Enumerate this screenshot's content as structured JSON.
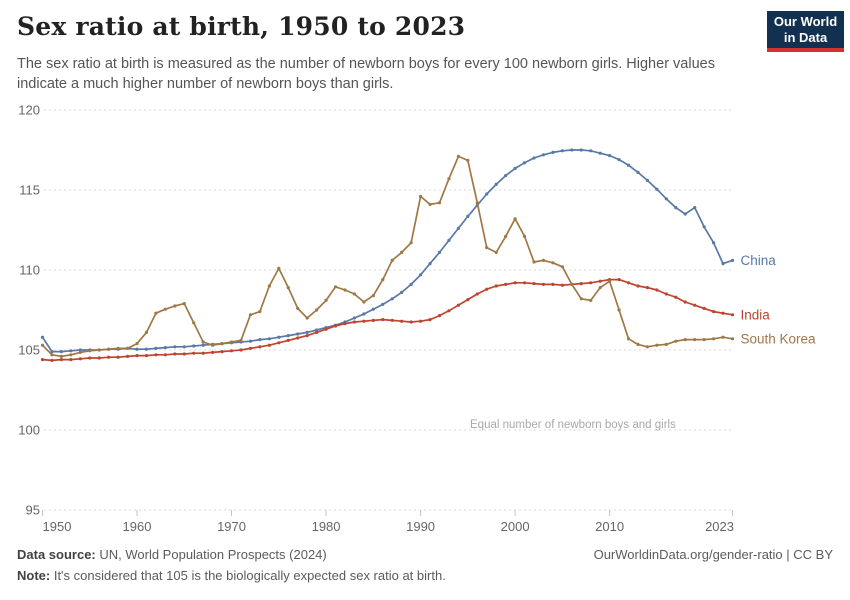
{
  "header": {
    "title": "Sex ratio at birth, 1950 to 2023",
    "subtitle": "The sex ratio at birth is measured as the number of newborn boys for every 100 newborn girls. Higher values indicate a much higher number of newborn boys than girls.",
    "logo_line1": "Our World",
    "logo_line2": "in Data"
  },
  "footer": {
    "data_source_label": "Data source:",
    "data_source_text": " UN, World Population Prospects (2024)",
    "note_label": "Note:",
    "note_text": " It's considered that 105 is the biologically expected sex ratio at birth.",
    "attribution": "OurWorldinData.org/gender-ratio | CC BY"
  },
  "chart_data": {
    "type": "line",
    "title": "Sex ratio at birth, 1950 to 2023",
    "xlabel": "",
    "ylabel": "",
    "ylim": [
      95,
      120
    ],
    "yticks": [
      95,
      100,
      105,
      110,
      115,
      120
    ],
    "xticks": [
      1950,
      1960,
      1970,
      1980,
      1990,
      2000,
      2010,
      2023
    ],
    "grid": "dashed-horizontal",
    "legend_position": "end-of-line",
    "annotation": "Equal number of newborn boys and girls",
    "colors": {
      "grid": "#D8D8D8",
      "tick": "#C4C4C4",
      "axis_text": "#666666",
      "annotation_text": "#A8A8A8"
    },
    "x_start": 1950,
    "x_end": 2023,
    "series": [
      {
        "name": "China",
        "color": "#5878A8",
        "values": [
          105.8,
          104.9,
          104.9,
          104.95,
          105.0,
          105.0,
          105.0,
          105.05,
          105.05,
          105.1,
          105.05,
          105.05,
          105.1,
          105.15,
          105.2,
          105.2,
          105.25,
          105.3,
          105.35,
          105.4,
          105.45,
          105.5,
          105.55,
          105.65,
          105.7,
          105.8,
          105.9,
          106.0,
          106.1,
          106.25,
          106.4,
          106.55,
          106.75,
          107.0,
          107.25,
          107.55,
          107.85,
          108.2,
          108.6,
          109.1,
          109.7,
          110.4,
          111.1,
          111.85,
          112.6,
          113.35,
          114.05,
          114.75,
          115.35,
          115.9,
          116.35,
          116.7,
          117.0,
          117.2,
          117.35,
          117.45,
          117.5,
          117.5,
          117.45,
          117.3,
          117.15,
          116.9,
          116.55,
          116.1,
          115.6,
          115.05,
          114.45,
          113.9,
          113.5,
          113.9,
          112.7,
          111.7,
          110.4,
          110.6
        ]
      },
      {
        "name": "India",
        "color": "#BE4430",
        "values": [
          104.4,
          104.35,
          104.4,
          104.4,
          104.45,
          104.5,
          104.5,
          104.55,
          104.55,
          104.6,
          104.65,
          104.65,
          104.7,
          104.7,
          104.75,
          104.75,
          104.8,
          104.8,
          104.85,
          104.9,
          104.95,
          105.0,
          105.1,
          105.2,
          105.3,
          105.45,
          105.6,
          105.75,
          105.9,
          106.1,
          106.3,
          106.5,
          106.65,
          106.75,
          106.8,
          106.85,
          106.9,
          106.85,
          106.8,
          106.75,
          106.8,
          106.9,
          107.15,
          107.45,
          107.8,
          108.15,
          108.5,
          108.8,
          109.0,
          109.1,
          109.2,
          109.2,
          109.15,
          109.1,
          109.1,
          109.05,
          109.1,
          109.15,
          109.2,
          109.3,
          109.4,
          109.4,
          109.2,
          109.0,
          108.9,
          108.75,
          108.5,
          108.3,
          108.0,
          107.8,
          107.6,
          107.4,
          107.3,
          107.2
        ]
      },
      {
        "name": "South Korea",
        "color": "#A07846",
        "values": [
          105.3,
          104.7,
          104.6,
          104.7,
          104.85,
          104.95,
          105.0,
          105.05,
          105.1,
          105.1,
          105.4,
          106.1,
          107.3,
          107.55,
          107.75,
          107.9,
          106.7,
          105.5,
          105.3,
          105.4,
          105.5,
          105.6,
          107.2,
          107.4,
          109.0,
          110.1,
          108.9,
          107.6,
          107.0,
          107.5,
          108.1,
          108.95,
          108.75,
          108.5,
          108.0,
          108.4,
          109.4,
          110.6,
          111.1,
          111.7,
          114.6,
          114.1,
          114.2,
          115.7,
          117.1,
          116.85,
          114.2,
          111.4,
          111.1,
          112.1,
          113.2,
          112.1,
          110.5,
          110.6,
          110.45,
          110.2,
          109.1,
          108.2,
          108.1,
          108.9,
          109.3,
          107.5,
          105.7,
          105.35,
          105.2,
          105.3,
          105.35,
          105.55,
          105.65,
          105.65,
          105.65,
          105.7,
          105.8,
          105.7
        ]
      }
    ]
  }
}
